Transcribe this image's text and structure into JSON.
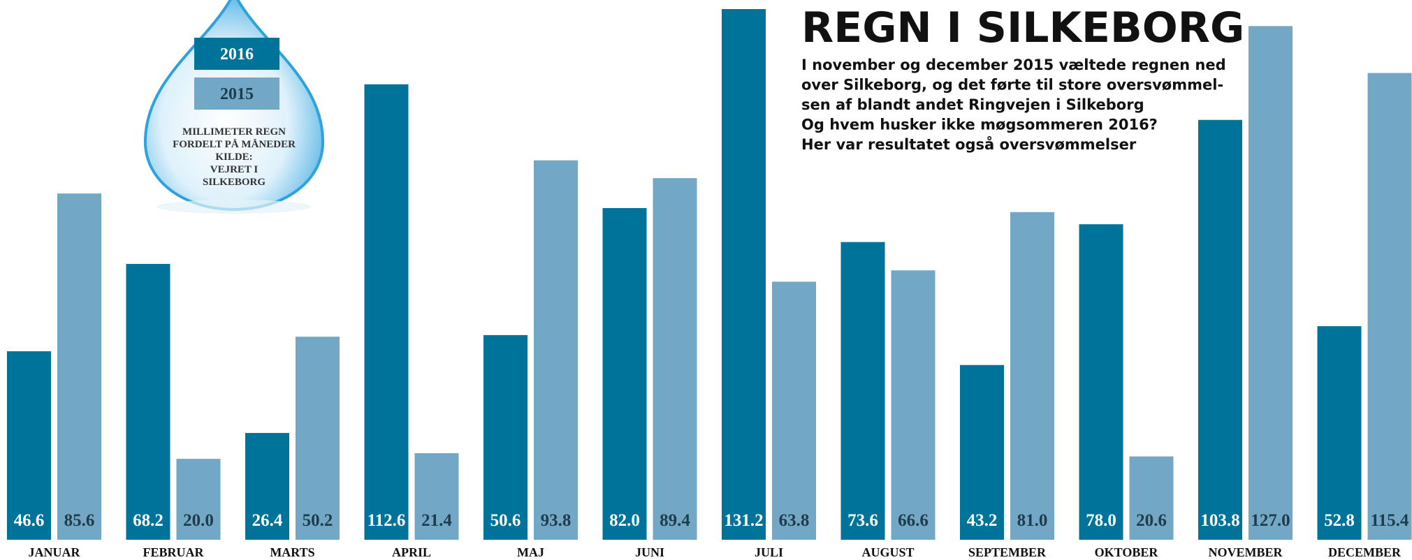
{
  "chart_data": {
    "type": "bar",
    "title": "REGN I SILKEBORG",
    "subtitle": [
      "I november og december 2015 væltede regnen ned",
      "over Silkeborg, og det førte til store oversvømmel-",
      "sen af blandt andet Ringvejen i Silkeborg",
      "Og hvem husker ikke møgsommeren 2016?",
      "Her var resultatet også oversvømmelser"
    ],
    "note": [
      "MILLIMETER REGN",
      "FORDELT PÅ MÅNEDER",
      "KILDE:",
      "VEJRET I",
      "SILKEBORG"
    ],
    "categories": [
      "JANUAR",
      "FEBRUAR",
      "MARTS",
      "APRIL",
      "MAJ",
      "JUNI",
      "JULI",
      "AUGUST",
      "SEPTEMBER",
      "OKTOBER",
      "NOVEMBER",
      "DECEMBER"
    ],
    "series": [
      {
        "name": "2016",
        "color": "#00739a",
        "values": [
          46.6,
          68.2,
          26.4,
          112.6,
          50.6,
          82.0,
          131.2,
          73.6,
          43.2,
          78.0,
          103.8,
          52.8
        ],
        "value_labels": [
          "46.6",
          "68.2",
          "26.4",
          "112.6",
          "50.6",
          "82.0",
          "131.2",
          "73.6",
          "43.2",
          "78.0",
          "103.8",
          "52.8"
        ]
      },
      {
        "name": "2015",
        "color": "#72a8c6",
        "values": [
          85.6,
          20.0,
          50.2,
          21.4,
          93.8,
          89.4,
          63.8,
          66.6,
          81.0,
          20.6,
          127.0,
          115.4
        ],
        "value_labels": [
          "85.6",
          "20.0",
          "50.2",
          "21.4",
          "93.8",
          "89.4",
          "63.8",
          "66.6",
          "81.0",
          "20.6",
          "127.0",
          "115.4"
        ]
      }
    ]
  }
}
